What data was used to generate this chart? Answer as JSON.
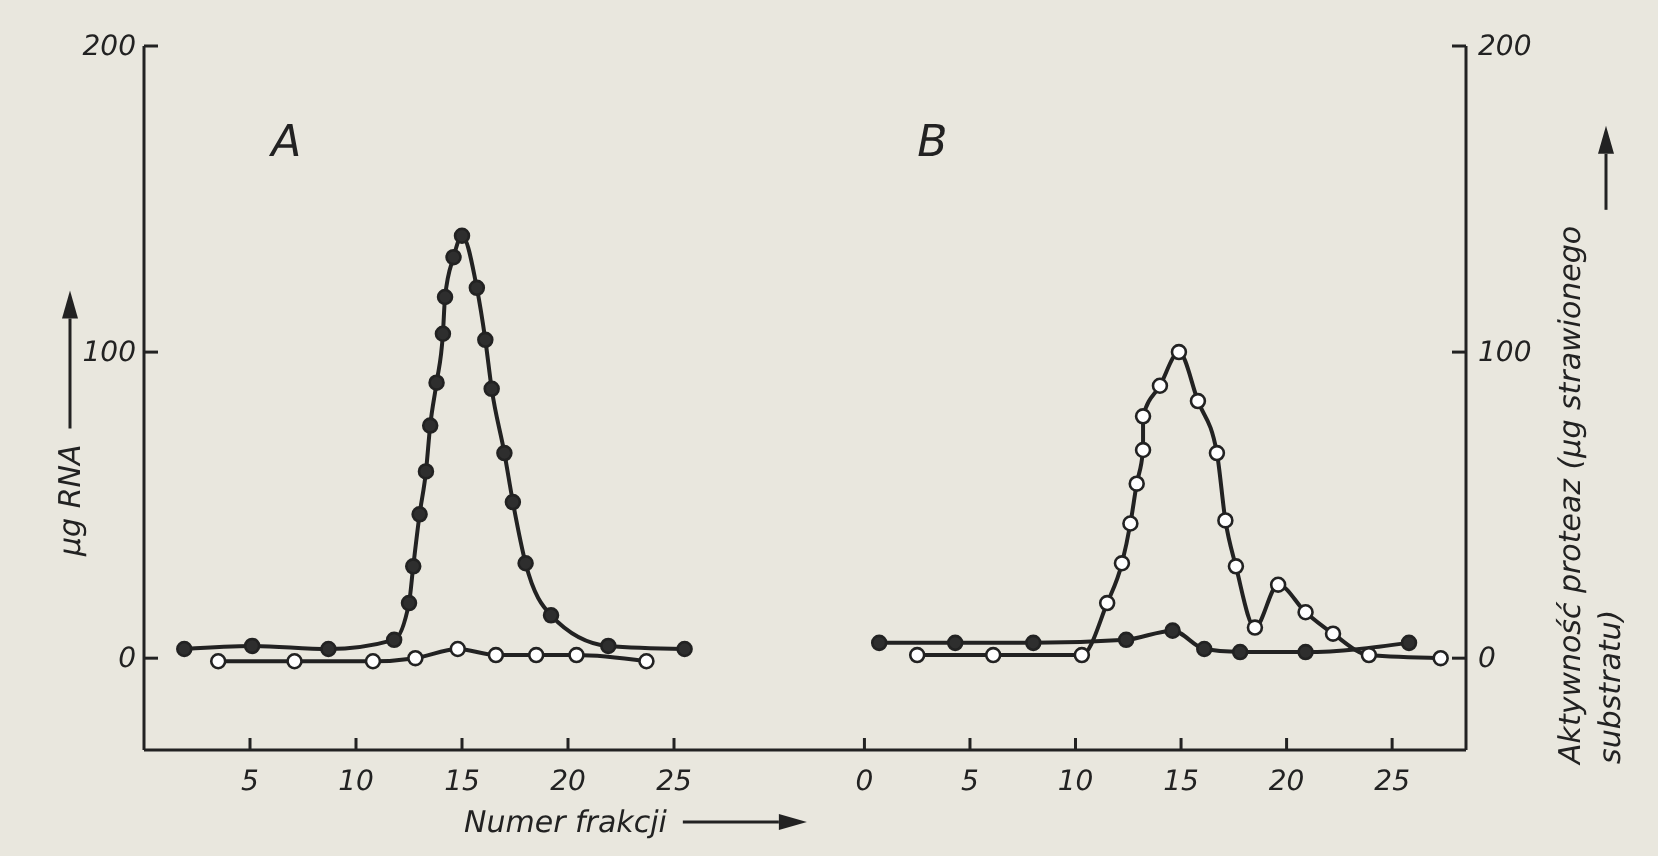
{
  "chart_data": [
    {
      "type": "line",
      "title": "A",
      "xlabel": "Numer frakcji",
      "ylabel": "μg RNA",
      "xlim": [
        0,
        30
      ],
      "xticks": [
        5,
        10,
        15,
        20,
        25
      ],
      "ylim": [
        -30,
        200
      ],
      "yticks": [
        0,
        100,
        200
      ],
      "marker": "circle",
      "line_style": "solid",
      "grid": false,
      "series": [
        {
          "color": "#2e2e2e",
          "x": [
            1.9,
            5.1,
            8.7,
            11.8,
            12.5,
            12.7,
            13.0,
            13.3,
            13.5,
            13.8,
            14.1,
            14.2,
            14.6,
            15.0,
            15.7,
            16.1,
            16.4,
            17.0,
            17.4,
            18.0,
            19.2,
            21.9,
            25.5
          ],
          "values": [
            3,
            4,
            3,
            6,
            18,
            30,
            47,
            61,
            76,
            90,
            106,
            118,
            131,
            138,
            121,
            104,
            88,
            67,
            51,
            31,
            14,
            4,
            3
          ]
        },
        {
          "color": "#ffffff",
          "x": [
            3.5,
            7.1,
            10.8,
            12.8,
            14.8,
            16.6,
            18.5,
            20.4,
            23.7
          ],
          "values": [
            -1,
            -1,
            -1,
            0,
            3,
            1,
            1,
            1,
            -1
          ]
        }
      ]
    },
    {
      "type": "line",
      "title": "B",
      "y2label": "Aktywność proteaz (μg strawionego substratu)",
      "xlim": [
        -4,
        28.5
      ],
      "xticks": [
        0,
        5,
        10,
        15,
        20,
        25
      ],
      "y2lim": [
        -30,
        200
      ],
      "y2ticks": [
        0,
        100,
        200
      ],
      "marker": "circle",
      "line_style": "solid",
      "grid": false,
      "series": [
        {
          "color": "#2e2e2e",
          "axis": "y2",
          "x": [
            0.7,
            4.3,
            8.0,
            12.4,
            14.6,
            16.1,
            17.8,
            20.9,
            25.8
          ],
          "values": [
            5,
            5,
            5,
            6,
            9,
            3,
            2,
            2,
            5
          ]
        },
        {
          "color": "#ffffff",
          "axis": "y2",
          "x": [
            2.5,
            6.1,
            10.3,
            11.5,
            12.2,
            12.6,
            12.9,
            13.2,
            13.2,
            14.0,
            14.9,
            15.8,
            16.7,
            17.1,
            17.6,
            18.5,
            19.6,
            20.9,
            22.2,
            23.9,
            27.3
          ],
          "values": [
            1,
            1,
            1,
            18,
            31,
            44,
            57,
            68,
            79,
            89,
            100,
            84,
            67,
            45,
            30,
            10,
            24,
            15,
            8,
            1,
            0
          ]
        }
      ]
    }
  ]
}
